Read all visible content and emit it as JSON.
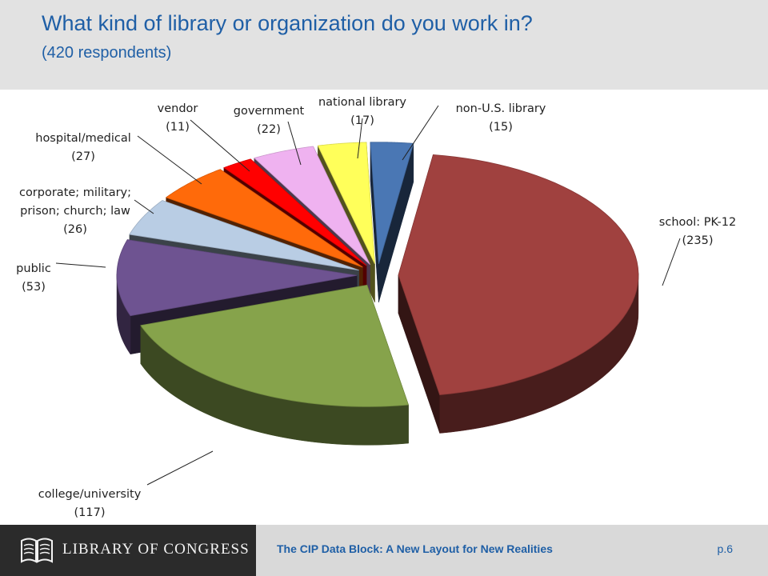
{
  "header": {
    "title": "What kind of library or organization  do you work in?",
    "subtitle": "(420 respondents)"
  },
  "chart_data": {
    "type": "pie",
    "style": "3d-exploded",
    "total_respondents": 420,
    "slices": [
      {
        "label": "non-U.S. library",
        "value": 15,
        "color": "#4a77b4"
      },
      {
        "label": "school: PK-12",
        "value": 235,
        "color": "#a0413f"
      },
      {
        "label": "college/university",
        "value": 117,
        "color": "#86a34b"
      },
      {
        "label": "public",
        "value": 53,
        "color": "#6e5391"
      },
      {
        "label": "corporate; military; prison; church; law",
        "value": 26,
        "color": "#b9cde4"
      },
      {
        "label": "hospital/medical",
        "value": 27,
        "color": "#ff6a0a"
      },
      {
        "label": "vendor",
        "value": 11,
        "color": "#ff0000"
      },
      {
        "label": "government",
        "value": 22,
        "color": "#efb2f0"
      },
      {
        "label": "national library",
        "value": 17,
        "color": "#ffff5a"
      }
    ],
    "labels": [
      {
        "lines": [
          "non-U.S. library",
          "(15)"
        ]
      },
      {
        "lines": [
          "school: PK-12",
          "(235)"
        ]
      },
      {
        "lines": [
          "college/university",
          "(117)"
        ]
      },
      {
        "lines": [
          "public",
          "(53)"
        ]
      },
      {
        "lines": [
          "corporate; military;",
          "prison; church; law",
          "(26)"
        ]
      },
      {
        "lines": [
          "hospital/medical",
          "(27)"
        ]
      },
      {
        "lines": [
          "vendor",
          "(11)"
        ]
      },
      {
        "lines": [
          "government",
          "(22)"
        ]
      },
      {
        "lines": [
          "national library",
          "(17)"
        ]
      }
    ]
  },
  "footer": {
    "logo_text": "LIBRARY OF CONGRESS",
    "caption": "The CIP Data Block:  A New Layout for New Realities",
    "page": "p.6"
  }
}
